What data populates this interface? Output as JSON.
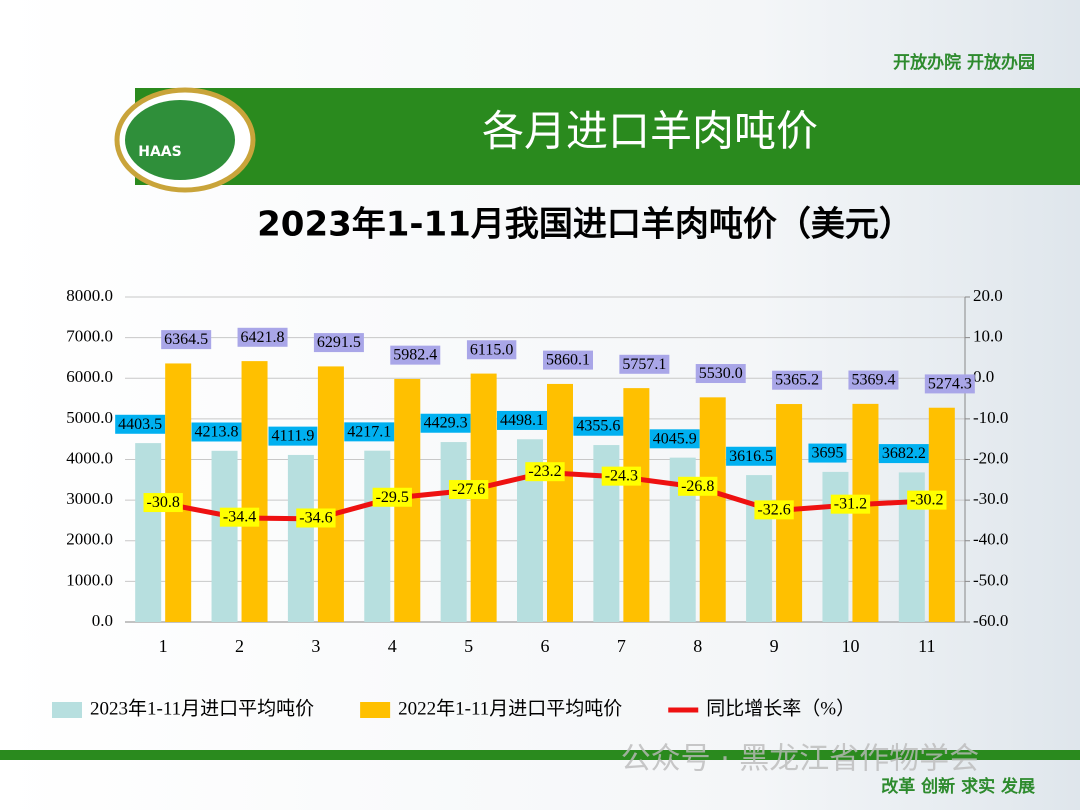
{
  "page": {
    "header": "各月进口羊肉吨价",
    "slogan_top": "开放办院  开放办园",
    "slogan_bottom": "改革 创新 求实  发展",
    "logo": "HAAS",
    "watermark": "公众号 · 黑龙江省作物学会"
  },
  "chart_data": {
    "type": "bar_line",
    "title": "2023年1-11月我国进口羊肉吨价（美元）",
    "categories": [
      "1",
      "2",
      "3",
      "4",
      "5",
      "6",
      "7",
      "8",
      "9",
      "10",
      "11"
    ],
    "series": [
      {
        "name": "2023年1-11月进口平均吨价",
        "color": "#b7dfdf",
        "label_color": "#00b0f0",
        "kind": "bar",
        "values": [
          4403.5,
          4213.8,
          4111.9,
          4217.1,
          4429.3,
          4498.1,
          4355.6,
          4045.9,
          3616.5,
          3695,
          3682.2
        ]
      },
      {
        "name": "2022年1-11月进口平均吨价",
        "color": "#ffc000",
        "label_color": "#a9a6e8",
        "kind": "bar",
        "values": [
          6364.5,
          6421.8,
          6291.5,
          5982.4,
          6115.0,
          5860.1,
          5757.1,
          5530.0,
          5365.2,
          5369.4,
          5274.3
        ],
        "value_labels": [
          "6364.5",
          "6421.8",
          "6291.5",
          "5982.4",
          "6115.0",
          "5860.1",
          "5757.1",
          "5530.0",
          "5365.2",
          "5369.4",
          "5274.3"
        ]
      },
      {
        "name": "同比增长率（%）",
        "color": "#ee1111",
        "label_color": "#ffff00",
        "kind": "line",
        "axis": "y2",
        "values": [
          -30.8,
          -34.4,
          -34.6,
          -29.5,
          -27.6,
          -23.2,
          -24.3,
          -26.8,
          -32.6,
          -31.2,
          -30.2
        ]
      }
    ],
    "ylim": [
      0,
      8000
    ],
    "yticks": [
      {
        "value": 0,
        "label": "0.0"
      },
      {
        "value": 1000,
        "label": "1000.0"
      },
      {
        "value": 2000,
        "label": "2000.0"
      },
      {
        "value": 3000,
        "label": "3000.0"
      },
      {
        "value": 4000,
        "label": "4000.0"
      },
      {
        "value": 5000,
        "label": "5000.0"
      },
      {
        "value": 6000,
        "label": "6000.0"
      },
      {
        "value": 7000,
        "label": "7000.0"
      },
      {
        "value": 8000,
        "label": "8000.0"
      }
    ],
    "y2lim": [
      -60,
      20
    ],
    "y2ticks": [
      {
        "value": -60,
        "label": "-60.0"
      },
      {
        "value": -50,
        "label": "-50.0"
      },
      {
        "value": -40,
        "label": "-40.0"
      },
      {
        "value": -30,
        "label": "-30.0"
      },
      {
        "value": -20,
        "label": "-20.0"
      },
      {
        "value": -10,
        "label": "-10.0"
      },
      {
        "value": 0,
        "label": "0.0"
      },
      {
        "value": 10,
        "label": "10.0"
      },
      {
        "value": 20,
        "label": "20.0"
      }
    ],
    "grid": true
  }
}
